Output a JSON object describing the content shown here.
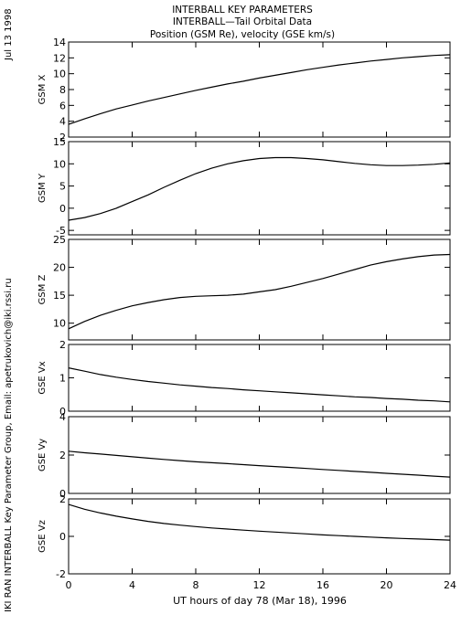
{
  "header": {
    "title_line1": "INTERBALL KEY PARAMETERS",
    "title_line2": "INTERBALL—Tail Orbital Data",
    "title_line3": "Position (GSM Re), velocity (GSE km/s)"
  },
  "side_text": {
    "date": "Jul 13 1998",
    "credit": "IKI RAN INTERBALL Key Parameter Group, Email: apetrukovich@iki.rssi.ru"
  },
  "xaxis": {
    "label": "UT hours of day  78 (Mar 18), 1996",
    "ticks": [
      0,
      4,
      8,
      12,
      16,
      20,
      24
    ],
    "range": [
      0,
      24
    ]
  },
  "chart_data": [
    {
      "type": "line",
      "ylabel": "GSM X",
      "xlim": [
        0,
        24
      ],
      "ylim": [
        2,
        14
      ],
      "yticks": [
        2,
        4,
        6,
        8,
        10,
        12,
        14
      ],
      "x": [
        0,
        1,
        2,
        3,
        4,
        5,
        6,
        7,
        8,
        9,
        10,
        11,
        12,
        13,
        14,
        15,
        16,
        17,
        18,
        19,
        20,
        21,
        22,
        23,
        24
      ],
      "series": [
        {
          "values": [
            3.6,
            4.3,
            4.95,
            5.55,
            6.05,
            6.55,
            7.0,
            7.45,
            7.9,
            8.3,
            8.7,
            9.05,
            9.45,
            9.8,
            10.15,
            10.5,
            10.8,
            11.1,
            11.35,
            11.6,
            11.8,
            12.0,
            12.15,
            12.3,
            12.4
          ]
        }
      ]
    },
    {
      "type": "line",
      "ylabel": "GSM Y",
      "xlim": [
        0,
        24
      ],
      "ylim": [
        -6,
        15
      ],
      "yticks": [
        -5,
        0,
        5,
        10,
        15
      ],
      "x": [
        0,
        1,
        2,
        3,
        4,
        5,
        6,
        7,
        8,
        9,
        10,
        11,
        12,
        13,
        14,
        15,
        16,
        17,
        18,
        19,
        20,
        21,
        22,
        23,
        24
      ],
      "series": [
        {
          "values": [
            -2.7,
            -2.1,
            -1.2,
            0.0,
            1.5,
            3.0,
            4.7,
            6.3,
            7.8,
            9.0,
            10.0,
            10.7,
            11.2,
            11.4,
            11.4,
            11.2,
            10.9,
            10.5,
            10.1,
            9.8,
            9.6,
            9.6,
            9.7,
            9.9,
            10.2
          ]
        }
      ]
    },
    {
      "type": "line",
      "ylabel": "GSM Z",
      "xlim": [
        0,
        24
      ],
      "ylim": [
        7,
        25
      ],
      "yticks": [
        10,
        15,
        20,
        25
      ],
      "x": [
        0,
        1,
        2,
        3,
        4,
        5,
        6,
        7,
        8,
        9,
        10,
        11,
        12,
        13,
        14,
        15,
        16,
        17,
        18,
        19,
        20,
        21,
        22,
        23,
        24
      ],
      "series": [
        {
          "values": [
            9.0,
            10.3,
            11.4,
            12.3,
            13.1,
            13.7,
            14.2,
            14.6,
            14.8,
            14.9,
            15.0,
            15.2,
            15.6,
            16.0,
            16.6,
            17.3,
            18.0,
            18.8,
            19.6,
            20.4,
            21.0,
            21.5,
            21.9,
            22.2,
            22.3
          ]
        }
      ]
    },
    {
      "type": "line",
      "ylabel": "GSE Vx",
      "xlim": [
        0,
        24
      ],
      "ylim": [
        0,
        2
      ],
      "yticks": [
        0,
        1,
        2
      ],
      "x": [
        0,
        1,
        2,
        3,
        4,
        5,
        6,
        7,
        8,
        9,
        10,
        11,
        12,
        13,
        14,
        15,
        16,
        17,
        18,
        19,
        20,
        21,
        22,
        23,
        24
      ],
      "series": [
        {
          "values": [
            1.3,
            1.2,
            1.1,
            1.02,
            0.95,
            0.89,
            0.84,
            0.79,
            0.75,
            0.71,
            0.68,
            0.64,
            0.61,
            0.58,
            0.55,
            0.52,
            0.49,
            0.46,
            0.43,
            0.41,
            0.38,
            0.36,
            0.33,
            0.31,
            0.28
          ]
        }
      ]
    },
    {
      "type": "line",
      "ylabel": "GSE Vy",
      "xlim": [
        0,
        24
      ],
      "ylim": [
        0,
        4
      ],
      "yticks": [
        0,
        2,
        4
      ],
      "x": [
        0,
        1,
        2,
        3,
        4,
        5,
        6,
        7,
        8,
        9,
        10,
        11,
        12,
        13,
        14,
        15,
        16,
        17,
        18,
        19,
        20,
        21,
        22,
        23,
        24
      ],
      "series": [
        {
          "values": [
            2.2,
            2.12,
            2.05,
            1.98,
            1.91,
            1.84,
            1.77,
            1.71,
            1.65,
            1.6,
            1.55,
            1.5,
            1.45,
            1.4,
            1.35,
            1.3,
            1.25,
            1.2,
            1.15,
            1.1,
            1.05,
            1.0,
            0.95,
            0.9,
            0.85
          ]
        }
      ]
    },
    {
      "type": "line",
      "ylabel": "GSE Vz",
      "xlim": [
        0,
        24
      ],
      "ylim": [
        -2,
        2
      ],
      "yticks": [
        -2,
        0,
        2
      ],
      "x": [
        0,
        1,
        2,
        3,
        4,
        5,
        6,
        7,
        8,
        9,
        10,
        11,
        12,
        13,
        14,
        15,
        16,
        17,
        18,
        19,
        20,
        21,
        22,
        23,
        24
      ],
      "series": [
        {
          "values": [
            1.7,
            1.45,
            1.25,
            1.08,
            0.93,
            0.8,
            0.69,
            0.6,
            0.52,
            0.45,
            0.39,
            0.33,
            0.28,
            0.23,
            0.18,
            0.13,
            0.08,
            0.04,
            0.0,
            -0.04,
            -0.08,
            -0.11,
            -0.14,
            -0.17,
            -0.2
          ]
        }
      ]
    }
  ]
}
